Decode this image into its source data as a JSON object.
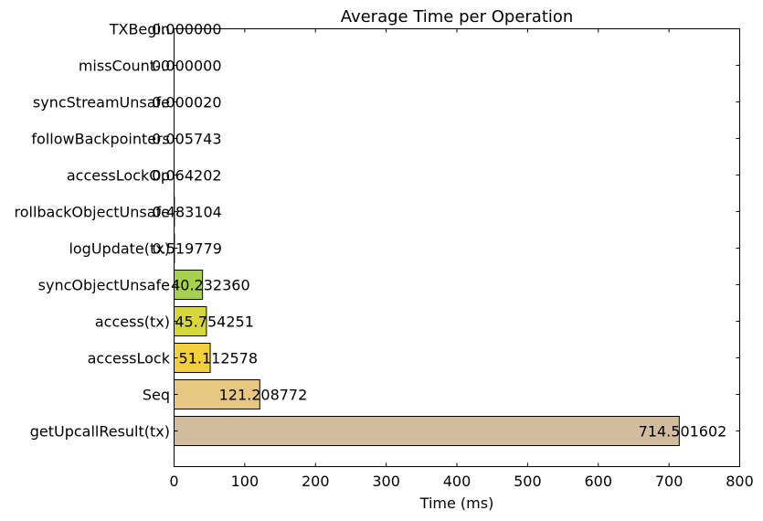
{
  "chart_data": {
    "type": "bar",
    "orientation": "horizontal",
    "title": "Average Time per Operation",
    "xlabel": "Time (ms)",
    "ylabel": "",
    "xlim": [
      0,
      800
    ],
    "xticks": [
      0,
      100,
      200,
      300,
      400,
      500,
      600,
      700,
      800
    ],
    "grid": false,
    "legend": "none",
    "categories": [
      "TXBegin",
      "missCount-0",
      "syncStreamUnsafe",
      "followBackpointers",
      "accessLockOp",
      "rollbackObjectUnsafe",
      "logUpdate(tx)",
      "syncObjectUnsafe",
      "access(tx)",
      "accessLock",
      "Seq",
      "getUpcallResult(tx)"
    ],
    "values": [
      0.0,
      0.0,
      2e-05,
      0.005743,
      0.064202,
      0.483104,
      0.519779,
      40.23236,
      45.754251,
      51.112578,
      121.208772,
      714.501602
    ],
    "value_labels": [
      "0.000000",
      "0.000000",
      "0.000020",
      "0.005743",
      "0.064202",
      "0.483104",
      "0.519779",
      "40.232360",
      "45.754251",
      "51.112578",
      "121.208772",
      "714.501602"
    ],
    "colors": [
      "#1a1a1a",
      "#1a1a1a",
      "#1a1a1a",
      "#1a1a1a",
      "#1a1a1a",
      "#1a1a1a",
      "#1a1a1a",
      "#a8d04f",
      "#d7d63a",
      "#f1cf3d",
      "#e6c882",
      "#d2bc9e"
    ]
  }
}
